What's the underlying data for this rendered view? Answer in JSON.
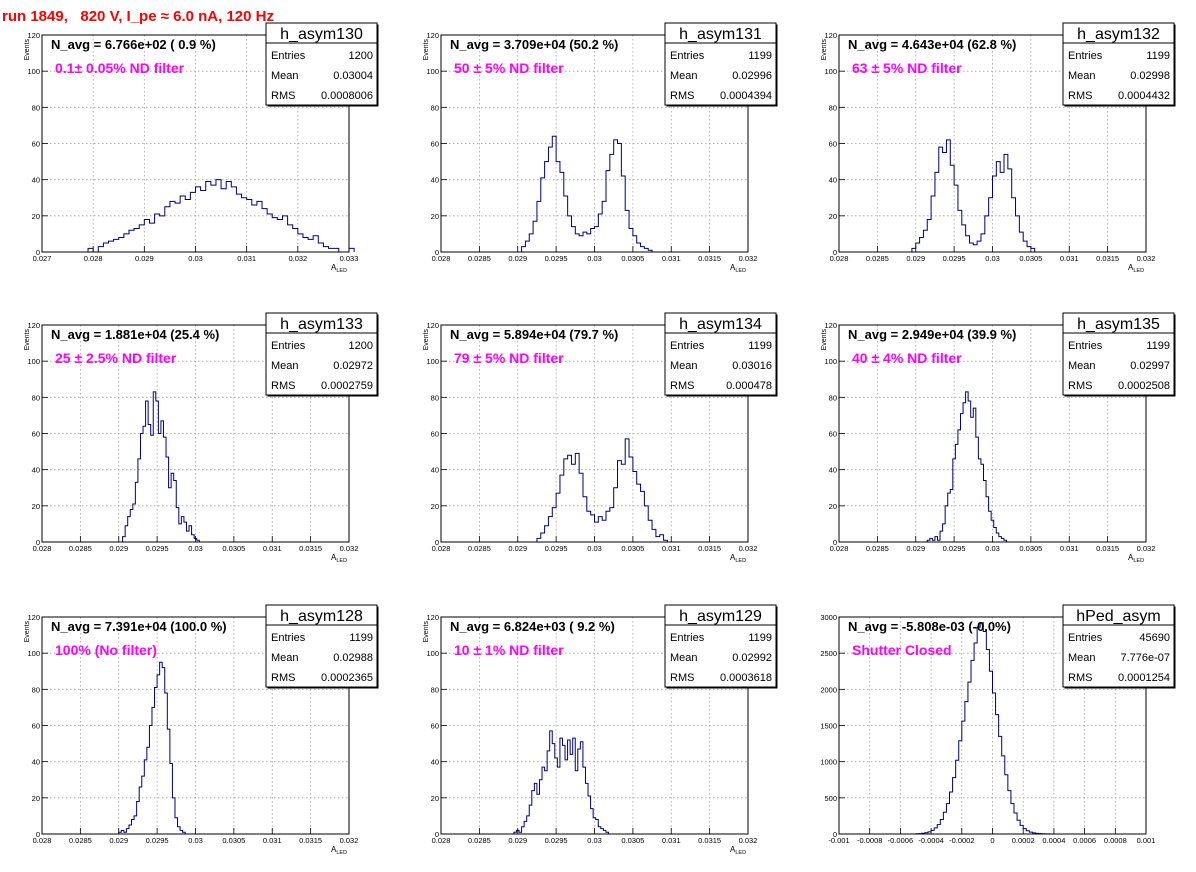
{
  "page_title": "run 1849,   820 V, I_pe ≈ 6.0 nA, 120 Hz",
  "colors": {
    "title": "#ff0000",
    "annotation": "#ff00ff",
    "histogram": "#000080",
    "grid": "#a0a0a0"
  },
  "chart_data": [
    {
      "type": "bar",
      "histogram_name": "h_asym130",
      "navg_text": "N_avg = 6.766e+02 ( 0.9 %)",
      "annotation": "0.1± 0.05% ND filter",
      "stats": {
        "entries": "1200",
        "mean": "0.03004",
        "rms": "0.0008006"
      },
      "stat_labels": [
        "Entries",
        "Mean",
        "RMS"
      ],
      "xlim": [
        0.027,
        0.033
      ],
      "ylim": [
        0,
        120
      ],
      "ylabel": "Events",
      "xlabel_main": "A",
      "xlabel_sub": "LED",
      "xticks": [
        "0.027",
        "0.028",
        "0.029",
        "0.03",
        "0.031",
        "0.032",
        "0.033"
      ],
      "yticks": [
        "0",
        "20",
        "40",
        "60",
        "80",
        "100",
        "120"
      ],
      "bin_width": 0.0001,
      "x_start": 0.0279,
      "values": [
        2,
        0,
        3,
        5,
        6,
        7,
        8,
        10,
        12,
        13,
        15,
        18,
        16,
        21,
        20,
        25,
        28,
        27,
        31,
        29,
        33,
        36,
        34,
        39,
        37,
        40,
        35,
        39,
        36,
        32,
        30,
        29,
        26,
        28,
        24,
        21,
        19,
        18,
        20,
        15,
        13,
        10,
        8,
        7,
        9,
        5,
        3,
        2,
        2,
        0,
        0,
        2
      ]
    },
    {
      "type": "bar",
      "histogram_name": "h_asym131",
      "navg_text": "N_avg = 3.709e+04 (50.2 %)",
      "annotation": "50 ± 5% ND filter",
      "stats": {
        "entries": "1199",
        "mean": "0.02996",
        "rms": "0.0004394"
      },
      "stat_labels": [
        "Entries",
        "Mean",
        "RMS"
      ],
      "xlim": [
        0.028,
        0.032
      ],
      "ylim": [
        0,
        120
      ],
      "ylabel": "Events",
      "xlabel_main": "A",
      "xlabel_sub": "LED",
      "xticks": [
        "0.028",
        "0.0285",
        "0.029",
        "0.0295",
        "0.03",
        "0.0305",
        "0.031",
        "0.0315",
        "0.032"
      ],
      "yticks": [
        "0",
        "20",
        "40",
        "60",
        "80",
        "100",
        "120"
      ],
      "bin_width": 5e-05,
      "x_start": 0.02905,
      "values": [
        3,
        6,
        10,
        17,
        28,
        41,
        50,
        58,
        64,
        50,
        44,
        31,
        20,
        14,
        10,
        9,
        11,
        10,
        13,
        14,
        21,
        28,
        45,
        54,
        62,
        60,
        42,
        23,
        13,
        9,
        5,
        3,
        2,
        1
      ]
    },
    {
      "type": "bar",
      "histogram_name": "h_asym132",
      "navg_text": "N_avg = 4.643e+04 (62.8 %)",
      "annotation": "63 ± 5% ND filter",
      "stats": {
        "entries": "1199",
        "mean": "0.02998",
        "rms": "0.0004432"
      },
      "stat_labels": [
        "Entries",
        "Mean",
        "RMS"
      ],
      "xlim": [
        0.028,
        0.032
      ],
      "ylim": [
        0,
        120
      ],
      "ylabel": "Events",
      "xlabel_main": "A",
      "xlabel_sub": "LED",
      "xticks": [
        "0.028",
        "0.0285",
        "0.029",
        "0.0295",
        "0.03",
        "0.0305",
        "0.031",
        "0.0315",
        "0.032"
      ],
      "yticks": [
        "0",
        "20",
        "40",
        "60",
        "80",
        "100",
        "120"
      ],
      "bin_width": 5e-05,
      "x_start": 0.02895,
      "values": [
        2,
        5,
        8,
        12,
        18,
        31,
        44,
        58,
        55,
        62,
        48,
        37,
        23,
        15,
        9,
        5,
        4,
        6,
        10,
        20,
        30,
        42,
        50,
        44,
        54,
        46,
        30,
        20,
        11,
        6,
        3,
        2
      ]
    },
    {
      "type": "bar",
      "histogram_name": "h_asym133",
      "navg_text": "N_avg = 1.881e+04 (25.4 %)",
      "annotation": "25 ± 2.5% ND filter",
      "stats": {
        "entries": "1200",
        "mean": "0.02972",
        "rms": "0.0002759"
      },
      "stat_labels": [
        "Entries",
        "Mean",
        "RMS"
      ],
      "xlim": [
        0.028,
        0.032
      ],
      "ylim": [
        0,
        120
      ],
      "ylabel": "Events",
      "xlabel_main": "A",
      "xlabel_sub": "LED",
      "xticks": [
        "0.028",
        "0.0285",
        "0.029",
        "0.0295",
        "0.03",
        "0.0305",
        "0.031",
        "0.0315",
        "0.032"
      ],
      "yticks": [
        "0",
        "20",
        "40",
        "60",
        "80",
        "100",
        "120"
      ],
      "bin_width": 3.33e-05,
      "x_start": 0.02905,
      "values": [
        3,
        9,
        14,
        18,
        21,
        33,
        46,
        60,
        64,
        78,
        65,
        59,
        83,
        78,
        60,
        67,
        58,
        47,
        30,
        38,
        34,
        19,
        10,
        14,
        11,
        6,
        9,
        4,
        2,
        1
      ]
    },
    {
      "type": "bar",
      "histogram_name": "h_asym134",
      "navg_text": "N_avg = 5.894e+04 (79.7 %)",
      "annotation": "79 ± 5% ND filter",
      "stats": {
        "entries": "1199",
        "mean": "0.03016",
        "rms": "0.000478"
      },
      "stat_labels": [
        "Entries",
        "Mean",
        "RMS"
      ],
      "xlim": [
        0.028,
        0.032
      ],
      "ylim": [
        0,
        120
      ],
      "ylabel": "Events",
      "xlabel_main": "A",
      "xlabel_sub": "LED",
      "xticks": [
        "0.028",
        "0.0285",
        "0.029",
        "0.0295",
        "0.03",
        "0.0305",
        "0.031",
        "0.0315",
        "0.032"
      ],
      "yticks": [
        "0",
        "20",
        "40",
        "60",
        "80",
        "100",
        "120"
      ],
      "bin_width": 5e-05,
      "x_start": 0.02925,
      "values": [
        2,
        5,
        9,
        14,
        19,
        27,
        37,
        46,
        48,
        43,
        49,
        38,
        25,
        17,
        15,
        11,
        14,
        12,
        17,
        19,
        30,
        45,
        43,
        57,
        47,
        39,
        32,
        28,
        20,
        12,
        7,
        3,
        4,
        1
      ]
    },
    {
      "type": "bar",
      "histogram_name": "h_asym135",
      "navg_text": "N_avg = 2.949e+04 (39.9 %)",
      "annotation": "40 ± 4% ND filter",
      "stats": {
        "entries": "1199",
        "mean": "0.02997",
        "rms": "0.0002508"
      },
      "stat_labels": [
        "Entries",
        "Mean",
        "RMS"
      ],
      "xlim": [
        0.028,
        0.032
      ],
      "ylim": [
        0,
        120
      ],
      "ylabel": "Events",
      "xlabel_main": "A",
      "xlabel_sub": "LED",
      "xticks": [
        "0.028",
        "0.0285",
        "0.029",
        "0.0295",
        "0.03",
        "0.0305",
        "0.031",
        "0.0315",
        "0.032"
      ],
      "yticks": [
        "0",
        "20",
        "40",
        "60",
        "80",
        "100",
        "120"
      ],
      "bin_width": 3.33e-05,
      "x_start": 0.02915,
      "values": [
        1,
        2,
        1,
        3,
        1,
        6,
        10,
        20,
        27,
        29,
        46,
        54,
        62,
        71,
        77,
        83,
        78,
        69,
        74,
        58,
        46,
        43,
        34,
        25,
        17,
        12,
        8,
        5,
        3,
        2,
        1
      ]
    },
    {
      "type": "bar",
      "histogram_name": "h_asym128",
      "navg_text": "N_avg = 7.391e+04 (100.0 %)",
      "annotation": "100% (No filter)",
      "stats": {
        "entries": "1199",
        "mean": "0.02988",
        "rms": "0.0002365"
      },
      "stat_labels": [
        "Entries",
        "Mean",
        "RMS"
      ],
      "xlim": [
        0.028,
        0.032
      ],
      "ylim": [
        0,
        120
      ],
      "ylabel": "Events",
      "xlabel_main": "A",
      "xlabel_sub": "LED",
      "xticks": [
        "0.028",
        "0.0285",
        "0.029",
        "0.0295",
        "0.03",
        "0.0305",
        "0.031",
        "0.0315",
        "0.032"
      ],
      "yticks": [
        "0",
        "20",
        "40",
        "60",
        "80",
        "100",
        "120"
      ],
      "bin_width": 3.33e-05,
      "x_start": 0.029,
      "values": [
        1,
        2,
        1,
        3,
        5,
        8,
        10,
        18,
        26,
        32,
        41,
        48,
        60,
        70,
        81,
        88,
        95,
        92,
        78,
        58,
        39,
        20,
        9,
        4,
        2,
        1
      ]
    },
    {
      "type": "bar",
      "histogram_name": "h_asym129",
      "navg_text": "N_avg = 6.824e+03 ( 9.2 %)",
      "annotation": "10 ± 1% ND filter",
      "stats": {
        "entries": "1199",
        "mean": "0.02992",
        "rms": "0.0003618"
      },
      "stat_labels": [
        "Entries",
        "Mean",
        "RMS"
      ],
      "xlim": [
        0.028,
        0.032
      ],
      "ylim": [
        0,
        120
      ],
      "ylabel": "Events",
      "xlabel_main": "A",
      "xlabel_sub": "LED",
      "xticks": [
        "0.028",
        "0.0285",
        "0.029",
        "0.0295",
        "0.03",
        "0.0305",
        "0.031",
        "0.0315",
        "0.032"
      ],
      "yticks": [
        "0",
        "20",
        "40",
        "60",
        "80",
        "100",
        "120"
      ],
      "bin_width": 3.33e-05,
      "x_start": 0.02895,
      "values": [
        1,
        2,
        1,
        4,
        7,
        10,
        16,
        24,
        28,
        22,
        30,
        37,
        35,
        46,
        57,
        50,
        42,
        37,
        53,
        49,
        41,
        52,
        44,
        53,
        35,
        47,
        51,
        37,
        28,
        21,
        14,
        9,
        8,
        4,
        3,
        2,
        1
      ]
    },
    {
      "type": "bar",
      "histogram_name": "hPed_asym",
      "navg_text": "N_avg = -5.808e-03 (-0.0%)",
      "annotation": "Shutter Closed",
      "stats": {
        "entries": "45690",
        "mean": "7.776e-07",
        "rms": "0.0001254"
      },
      "stat_labels": [
        "Entries",
        "Mean",
        "RMS"
      ],
      "xlim": [
        -0.001,
        0.001
      ],
      "ylim": [
        0,
        3000
      ],
      "ylabel": "",
      "xlabel_main": "",
      "xlabel_sub": "",
      "xticks": [
        "-0.001",
        "-0.0008",
        "-0.0006",
        "-0.0004",
        "-0.0002",
        "0",
        "0.0002",
        "0.0004",
        "0.0006",
        "0.0008",
        "0.001"
      ],
      "yticks": [
        "0",
        "500",
        "1000",
        "1500",
        "2000",
        "2500",
        "3000"
      ],
      "bin_width": 2e-05,
      "x_start": -0.0005,
      "values": [
        3,
        6,
        10,
        18,
        30,
        50,
        85,
        130,
        200,
        300,
        420,
        580,
        780,
        1020,
        1290,
        1560,
        1830,
        2100,
        2400,
        2640,
        2860,
        2920,
        2800,
        2550,
        2250,
        1950,
        1650,
        1350,
        1080,
        820,
        600,
        420,
        290,
        190,
        120,
        75,
        45,
        26,
        15,
        8,
        5,
        3,
        2,
        1
      ]
    }
  ]
}
